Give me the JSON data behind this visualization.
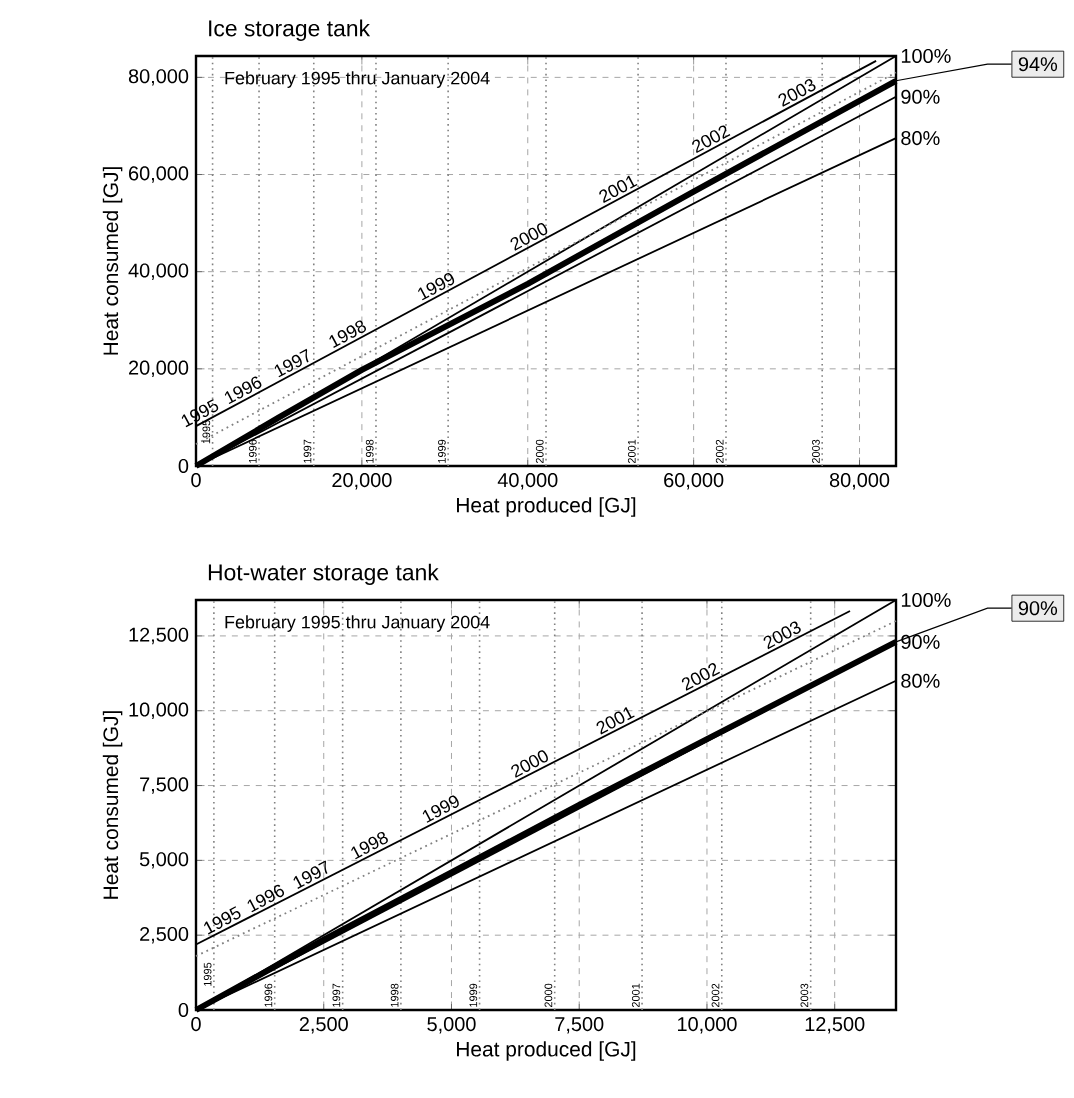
{
  "chart_data": [
    {
      "type": "line",
      "title": "Ice storage tank",
      "subtitle": "February 1995 thru January 2004",
      "xlabel": "Heat produced [GJ]",
      "ylabel": "Heat consumed [GJ]",
      "xlim": [
        0,
        84400
      ],
      "ylim": [
        0,
        84400
      ],
      "xticks": [
        0,
        {
          "value": 20000,
          "label": "20,000"
        },
        {
          "value": 40000,
          "label": "40,000"
        },
        {
          "value": 60000,
          "label": "60,000"
        },
        {
          "value": 80000,
          "label": "80,000"
        }
      ],
      "yticks": [
        0,
        {
          "value": 20000,
          "label": "20,000"
        },
        {
          "value": 40000,
          "label": "40,000"
        },
        {
          "value": 60000,
          "label": "60,000"
        },
        {
          "value": 80000,
          "label": "80,000"
        }
      ],
      "grid": true,
      "marker": "none",
      "series": [
        {
          "color": "#000000",
          "line_style": "solid",
          "x": [
            0,
            10000,
            20000,
            40000,
            60000,
            84400
          ],
          "values": [
            0,
            10000,
            19800,
            37500,
            56500,
            79300
          ]
        },
        {
          "name": "100%",
          "color": "#000000",
          "line_style": "solid",
          "x": [
            0,
            84400
          ],
          "values": [
            0,
            84400
          ]
        },
        {
          "name": "90%",
          "color": "#000000",
          "line_style": "solid",
          "x": [
            0,
            84400
          ],
          "values": [
            0,
            76000
          ]
        },
        {
          "name": "80%",
          "color": "#000000",
          "line_style": "solid",
          "x": [
            0,
            84400
          ],
          "values": [
            0,
            67500
          ]
        },
        {
          "color": "#000000",
          "line_style": "solid",
          "x": [
            0,
            82000
          ],
          "values": [
            8200,
            83400
          ]
        },
        {
          "color": "#808080",
          "line_style": "dotted",
          "x": [
            0,
            84400
          ],
          "values": [
            4500,
            81000
          ]
        }
      ],
      "ref_lines": [
        {
          "axis": "x",
          "value": 2000,
          "color": "#808080",
          "line_style": "dotted"
        },
        {
          "axis": "x",
          "value": 7600,
          "color": "#808080",
          "line_style": "dotted"
        },
        {
          "axis": "x",
          "value": 14200,
          "color": "#808080",
          "line_style": "dotted"
        },
        {
          "axis": "x",
          "value": 21700,
          "color": "#808080",
          "line_style": "dotted"
        },
        {
          "axis": "x",
          "value": 30400,
          "color": "#808080",
          "line_style": "dotted"
        },
        {
          "axis": "x",
          "value": 42200,
          "color": "#808080",
          "line_style": "dotted"
        },
        {
          "axis": "x",
          "value": 53300,
          "color": "#808080",
          "line_style": "dotted"
        },
        {
          "axis": "x",
          "value": 63900,
          "color": "#808080",
          "line_style": "dotted"
        },
        {
          "axis": "x",
          "value": 75500,
          "color": "#808080",
          "line_style": "dotted"
        }
      ],
      "annotations": [
        {
          "text": "1995",
          "x": 1000,
          "y": 9120
        },
        {
          "text": "1996",
          "x": 6200,
          "y": 13890
        },
        {
          "text": "1997",
          "x": 12200,
          "y": 19390
        },
        {
          "text": "1998",
          "x": 18800,
          "y": 25440
        },
        {
          "text": "1999",
          "x": 29500,
          "y": 35250
        },
        {
          "text": "2000",
          "x": 40700,
          "y": 45520
        },
        {
          "text": "2001",
          "x": 51400,
          "y": 55330
        },
        {
          "text": "2002",
          "x": 62600,
          "y": 65600
        },
        {
          "text": "2003",
          "x": 73000,
          "y": 75140
        },
        {
          "text": "1995",
          "x": 2000,
          "y": 4000
        },
        {
          "text": "1996",
          "x": 7600,
          "y": 0
        },
        {
          "text": "1997",
          "x": 14200,
          "y": 0
        },
        {
          "text": "1998",
          "x": 21700,
          "y": 0
        },
        {
          "text": "1999",
          "x": 30400,
          "y": 0
        },
        {
          "text": "2000",
          "x": 42200,
          "y": 0
        },
        {
          "text": "2001",
          "x": 53300,
          "y": 0
        },
        {
          "text": "2002",
          "x": 63900,
          "y": 0
        },
        {
          "text": "2003",
          "x": 75500,
          "y": 0
        },
        "94%"
      ]
    },
    {
      "type": "line",
      "title": "Hot-water storage tank",
      "subtitle": "February 1995 thru January 2004",
      "xlabel": "Heat produced [GJ]",
      "ylabel": "Heat consumed [GJ]",
      "xlim": [
        0,
        13700
      ],
      "ylim": [
        0,
        13700
      ],
      "xticks": [
        0,
        {
          "value": 2500,
          "label": "2,500"
        },
        {
          "value": 5000,
          "label": "5,000"
        },
        {
          "value": 7500,
          "label": "7,500"
        },
        {
          "value": 10000,
          "label": "10,000"
        },
        {
          "value": 12500,
          "label": "12,500"
        }
      ],
      "yticks": [
        0,
        {
          "value": 2500,
          "label": "2,500"
        },
        {
          "value": 5000,
          "label": "5,000"
        },
        {
          "value": 7500,
          "label": "7,500"
        },
        {
          "value": 10000,
          "label": "10,000"
        },
        {
          "value": 12500,
          "label": "12,500"
        }
      ],
      "grid": true,
      "marker": "none",
      "series": [
        {
          "color": "#000000",
          "line_style": "solid",
          "x": [
            0,
            2500,
            5000,
            7500,
            10000,
            13700
          ],
          "values": [
            0,
            2350,
            4600,
            6850,
            9050,
            12300
          ]
        },
        {
          "name": "100%",
          "color": "#000000",
          "line_style": "solid",
          "x": [
            0,
            13700
          ],
          "values": [
            0,
            13700
          ]
        },
        {
          "name": "90%",
          "color": "#000000",
          "line_style": "solid",
          "x": [
            0,
            13700
          ],
          "values": [
            0,
            12300
          ]
        },
        {
          "name": "80%",
          "color": "#000000",
          "line_style": "solid",
          "x": [
            0,
            13700
          ],
          "values": [
            0,
            11000
          ]
        },
        {
          "color": "#000000",
          "line_style": "solid",
          "x": [
            0,
            12800
          ],
          "values": [
            2190,
            13330
          ]
        },
        {
          "color": "#808080",
          "line_style": "dotted",
          "x": [
            0,
            13700
          ],
          "values": [
            1800,
            13000
          ]
        }
      ],
      "ref_lines": [
        {
          "axis": "x",
          "value": 350,
          "color": "#808080",
          "line_style": "dotted"
        },
        {
          "axis": "x",
          "value": 1540,
          "color": "#808080",
          "line_style": "dotted"
        },
        {
          "axis": "x",
          "value": 2870,
          "color": "#808080",
          "line_style": "dotted"
        },
        {
          "axis": "x",
          "value": 4010,
          "color": "#808080",
          "line_style": "dotted"
        },
        {
          "axis": "x",
          "value": 5550,
          "color": "#808080",
          "line_style": "dotted"
        },
        {
          "axis": "x",
          "value": 7020,
          "color": "#808080",
          "line_style": "dotted"
        },
        {
          "axis": "x",
          "value": 8730,
          "color": "#808080",
          "line_style": "dotted"
        },
        {
          "axis": "x",
          "value": 10290,
          "color": "#808080",
          "line_style": "dotted"
        },
        {
          "axis": "x",
          "value": 12030,
          "color": "#808080",
          "line_style": "dotted"
        }
      ],
      "annotations": [
        {
          "text": "1995",
          "x": 600,
          "y": 2710
        },
        {
          "text": "1996",
          "x": 1450,
          "y": 3450
        },
        {
          "text": "1997",
          "x": 2350,
          "y": 4230
        },
        {
          "text": "1998",
          "x": 3480,
          "y": 5220
        },
        {
          "text": "1999",
          "x": 4880,
          "y": 6440
        },
        {
          "text": "2000",
          "x": 6620,
          "y": 7950
        },
        {
          "text": "2001",
          "x": 8290,
          "y": 9400
        },
        {
          "text": "2002",
          "x": 9960,
          "y": 10860
        },
        {
          "text": "2003",
          "x": 11560,
          "y": 12250
        },
        {
          "text": "1995",
          "x": 350,
          "y": 700
        },
        {
          "text": "1996",
          "x": 1540,
          "y": 0
        },
        {
          "text": "1997",
          "x": 2870,
          "y": 0
        },
        {
          "text": "1998",
          "x": 4010,
          "y": 0
        },
        {
          "text": "1999",
          "x": 5550,
          "y": 0
        },
        {
          "text": "2000",
          "x": 7020,
          "y": 0
        },
        {
          "text": "2001",
          "x": 8730,
          "y": 0
        },
        {
          "text": "2002",
          "x": 10290,
          "y": 0
        },
        {
          "text": "2003",
          "x": 12030,
          "y": 0
        },
        "90%"
      ]
    }
  ]
}
